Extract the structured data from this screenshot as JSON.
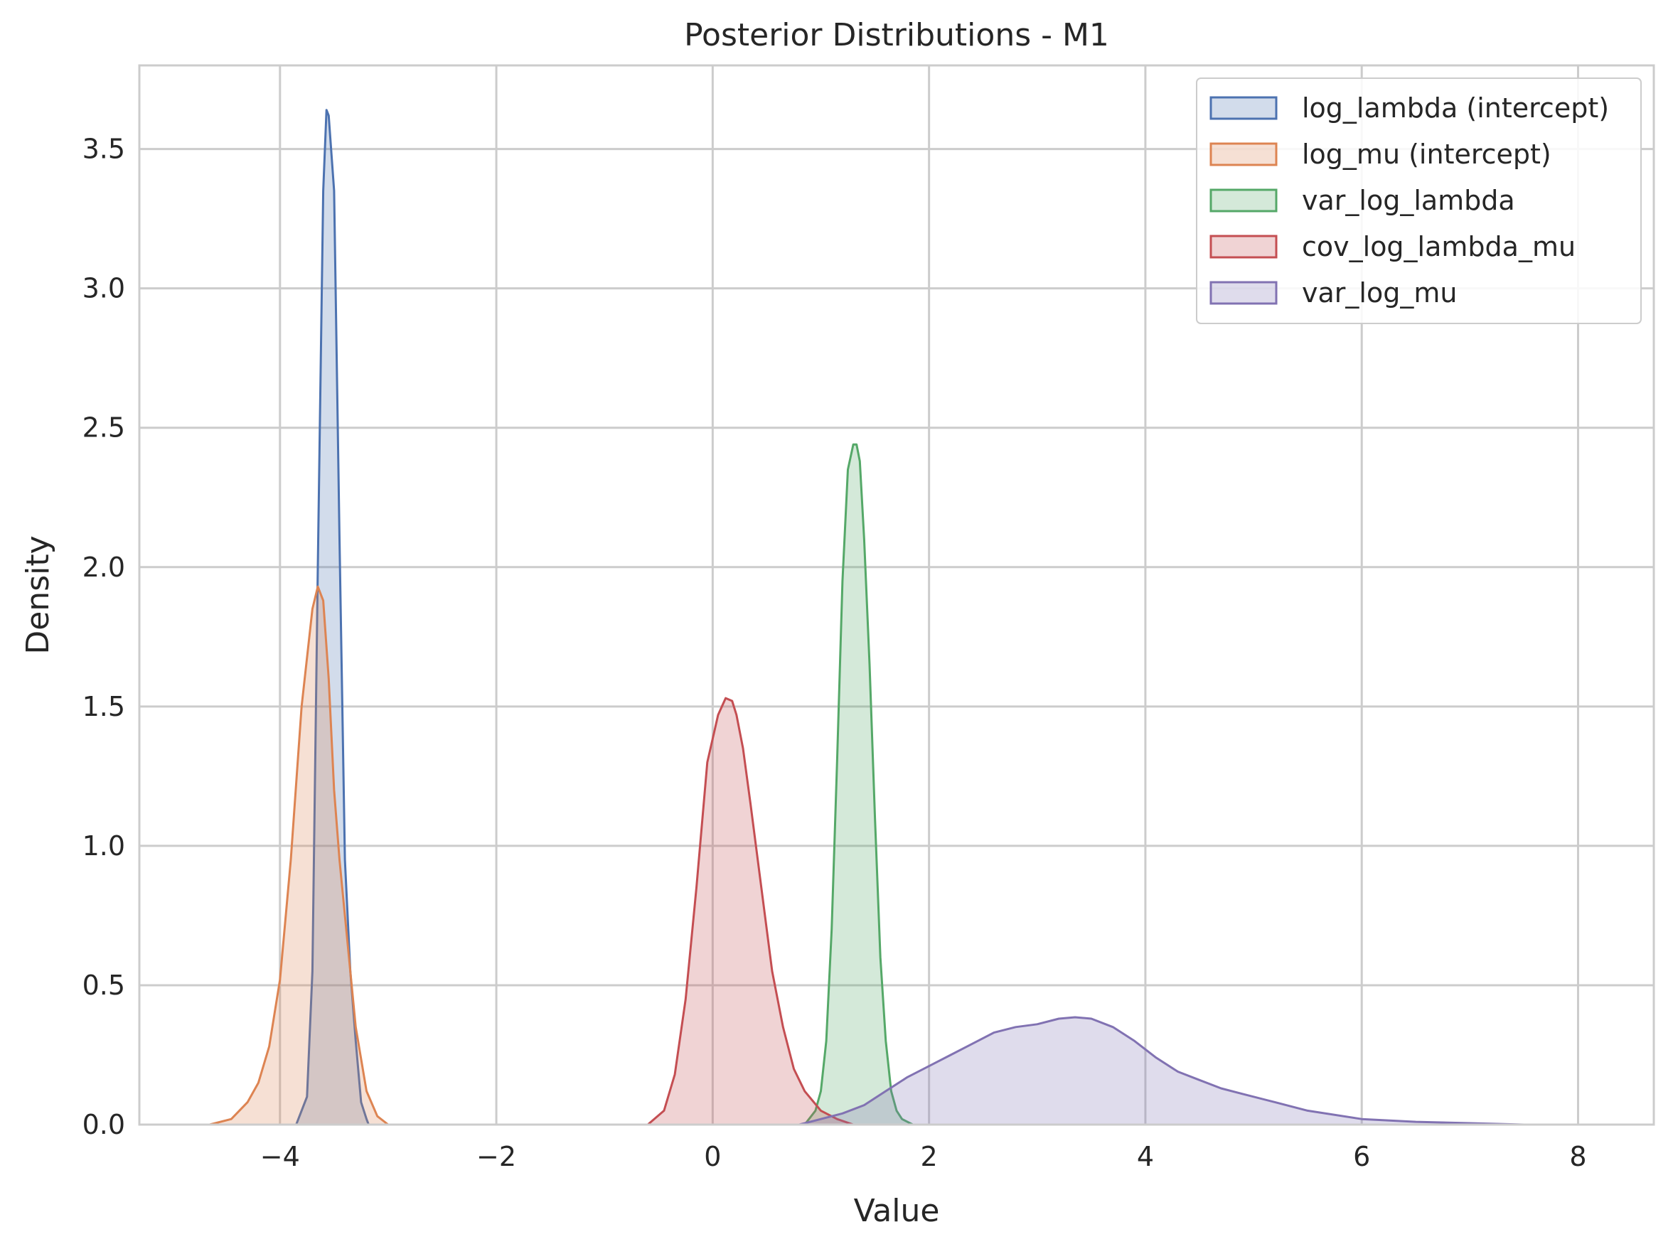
{
  "chart_data": {
    "type": "area",
    "title": "Posterior Distributions - M1",
    "xlabel": "Value",
    "ylabel": "Density",
    "xlim": [
      -5.3,
      8.7
    ],
    "ylim": [
      0,
      3.8
    ],
    "xticks": [
      -4,
      -2,
      0,
      2,
      4,
      6,
      8
    ],
    "xtick_labels": [
      "−4",
      "−2",
      "0",
      "2",
      "4",
      "6",
      "8"
    ],
    "yticks": [
      0.0,
      0.5,
      1.0,
      1.5,
      2.0,
      2.5,
      3.0,
      3.5
    ],
    "ytick_labels": [
      "0.0",
      "0.5",
      "1.0",
      "1.5",
      "2.0",
      "2.5",
      "3.0",
      "3.5"
    ],
    "grid": true,
    "legend_position": "top-right",
    "series": [
      {
        "name": "log_lambda (intercept)",
        "color": "#4c72b0",
        "x": [
          -3.85,
          -3.75,
          -3.7,
          -3.65,
          -3.6,
          -3.57,
          -3.55,
          -3.5,
          -3.45,
          -3.4,
          -3.35,
          -3.3,
          -3.25,
          -3.2,
          -3.18
        ],
        "y": [
          0.0,
          0.1,
          0.55,
          2.0,
          3.35,
          3.64,
          3.62,
          3.35,
          2.1,
          0.95,
          0.55,
          0.3,
          0.08,
          0.02,
          0.0
        ]
      },
      {
        "name": "log_mu (intercept)",
        "color": "#dd8452",
        "x": [
          -4.65,
          -4.45,
          -4.3,
          -4.2,
          -4.1,
          -4.0,
          -3.9,
          -3.8,
          -3.7,
          -3.65,
          -3.6,
          -3.55,
          -3.5,
          -3.45,
          -3.4,
          -3.35,
          -3.3,
          -3.2,
          -3.1,
          -3.0,
          -2.95
        ],
        "y": [
          0.0,
          0.02,
          0.08,
          0.15,
          0.28,
          0.52,
          0.95,
          1.5,
          1.85,
          1.93,
          1.88,
          1.6,
          1.2,
          0.95,
          0.75,
          0.55,
          0.35,
          0.12,
          0.03,
          0.0,
          0.0
        ]
      },
      {
        "name": "var_log_lambda",
        "color": "#55a868",
        "x": [
          0.85,
          0.95,
          1.0,
          1.05,
          1.1,
          1.15,
          1.2,
          1.25,
          1.3,
          1.33,
          1.36,
          1.4,
          1.45,
          1.5,
          1.55,
          1.6,
          1.65,
          1.7,
          1.75,
          1.8,
          1.85,
          1.95
        ],
        "y": [
          0.0,
          0.05,
          0.12,
          0.3,
          0.7,
          1.3,
          1.95,
          2.35,
          2.44,
          2.44,
          2.38,
          2.1,
          1.65,
          1.1,
          0.6,
          0.3,
          0.12,
          0.05,
          0.02,
          0.01,
          0.0,
          0.0
        ]
      },
      {
        "name": "cov_log_lambda_mu",
        "color": "#c44e52",
        "x": [
          -0.6,
          -0.45,
          -0.35,
          -0.25,
          -0.15,
          -0.05,
          0.05,
          0.12,
          0.18,
          0.22,
          0.28,
          0.35,
          0.45,
          0.55,
          0.65,
          0.75,
          0.85,
          1.0,
          1.15,
          1.3,
          1.45
        ],
        "y": [
          0.0,
          0.05,
          0.18,
          0.45,
          0.85,
          1.3,
          1.47,
          1.53,
          1.52,
          1.47,
          1.35,
          1.15,
          0.85,
          0.55,
          0.35,
          0.2,
          0.12,
          0.05,
          0.02,
          0.0,
          0.0
        ]
      },
      {
        "name": "var_log_mu",
        "color": "#8172b2",
        "x": [
          0.8,
          1.0,
          1.2,
          1.4,
          1.6,
          1.8,
          2.0,
          2.2,
          2.4,
          2.6,
          2.8,
          3.0,
          3.2,
          3.35,
          3.5,
          3.7,
          3.9,
          4.1,
          4.3,
          4.5,
          4.7,
          4.9,
          5.2,
          5.5,
          6.0,
          6.5,
          7.0,
          7.5,
          8.0
        ],
        "y": [
          0.0,
          0.02,
          0.04,
          0.07,
          0.12,
          0.17,
          0.21,
          0.25,
          0.29,
          0.33,
          0.35,
          0.36,
          0.38,
          0.385,
          0.38,
          0.35,
          0.3,
          0.24,
          0.19,
          0.16,
          0.13,
          0.11,
          0.08,
          0.05,
          0.02,
          0.01,
          0.005,
          0.0,
          0.0
        ]
      }
    ]
  }
}
